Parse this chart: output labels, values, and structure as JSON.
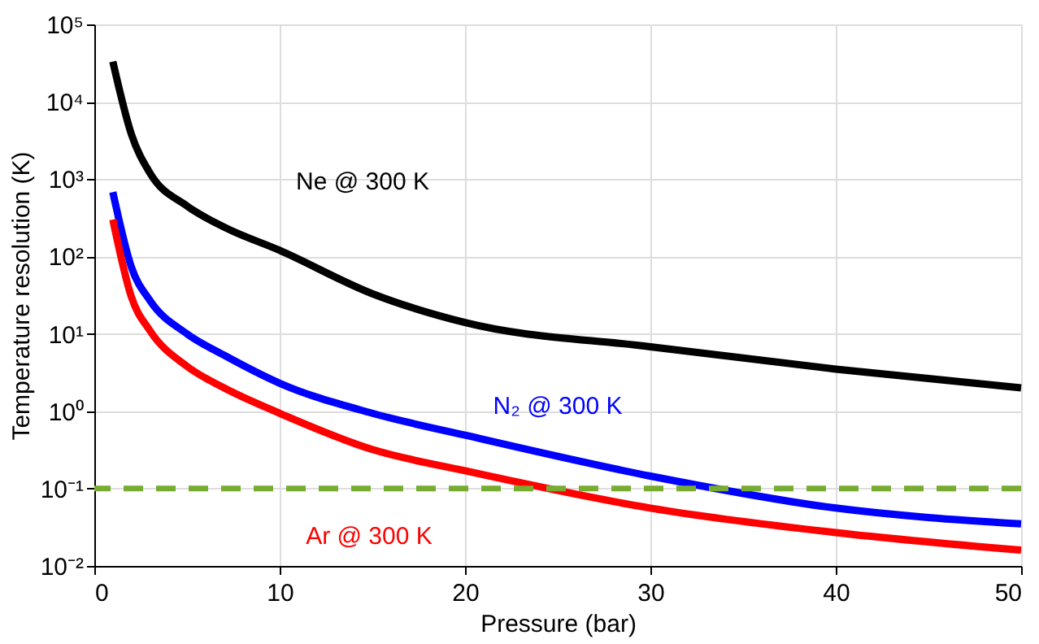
{
  "chart_data": {
    "type": "line",
    "xlabel": "Pressure (bar)",
    "ylabel": "Temperature resolution (K)",
    "x": [
      1,
      2,
      3,
      5,
      7,
      10,
      15,
      20,
      30,
      40,
      50
    ],
    "series": [
      {
        "name": "Ne @ 300 K",
        "color": "#000000",
        "values": [
          33000,
          3800,
          1200,
          450,
          240,
          120,
          33,
          14,
          6.8,
          3.5,
          2.0
        ]
      },
      {
        "name": "N₂ @ 300 K",
        "color": "#0000ff",
        "values": [
          680,
          73,
          27,
          10,
          5.3,
          2.3,
          0.94,
          0.49,
          0.145,
          0.056,
          0.035
        ]
      },
      {
        "name": "Ar @ 300 K",
        "color": "#ff0000",
        "values": [
          300,
          30,
          11,
          3.8,
          2.0,
          0.94,
          0.32,
          0.17,
          0.056,
          0.027,
          0.016
        ]
      }
    ],
    "ref_lines": [
      {
        "axis": "y",
        "value": 0.1,
        "color": "#77ac30",
        "line_style": "dashed"
      }
    ],
    "log": "y",
    "grid": true,
    "line_style": "solid",
    "marker": "none",
    "xlim": [
      0,
      50
    ],
    "xticks": [
      0,
      10,
      20,
      30,
      40,
      50
    ],
    "ylim": [
      0.01,
      100000
    ],
    "yticks": [
      {
        "value": 0.01,
        "label": "10⁻²"
      },
      {
        "value": 0.1,
        "label": "10⁻¹"
      },
      {
        "value": 1,
        "label": "10⁰"
      },
      {
        "value": 10,
        "label": "10¹"
      },
      {
        "value": 100,
        "label": "10²"
      },
      {
        "value": 1000,
        "label": "10³"
      },
      {
        "value": 10000,
        "label": "10⁴"
      },
      {
        "value": 100000,
        "label": "10⁵"
      }
    ]
  }
}
